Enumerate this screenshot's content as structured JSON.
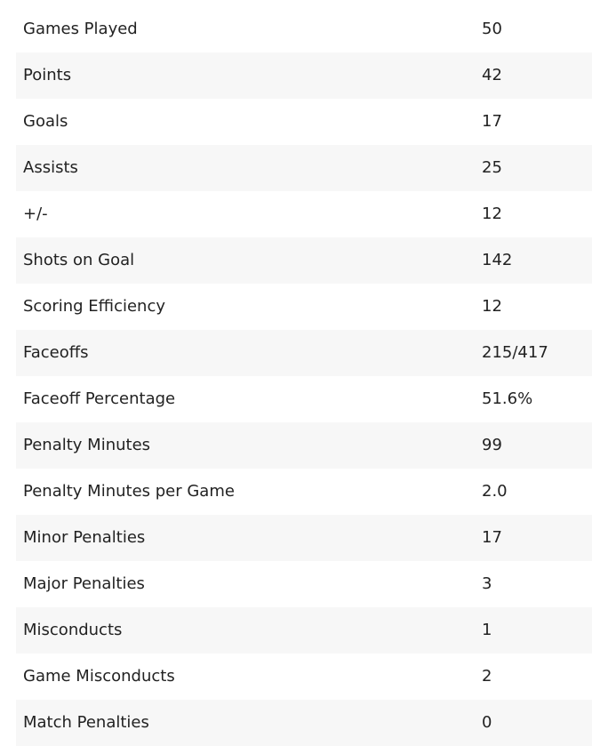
{
  "stats": [
    {
      "label": "Games Played",
      "value": "50"
    },
    {
      "label": "Points",
      "value": "42"
    },
    {
      "label": "Goals",
      "value": "17"
    },
    {
      "label": "Assists",
      "value": "25"
    },
    {
      "label": "+/-",
      "value": "12"
    },
    {
      "label": "Shots on Goal",
      "value": "142"
    },
    {
      "label": "Scoring Efficiency",
      "value": "12"
    },
    {
      "label": "Faceoffs",
      "value": "215/417"
    },
    {
      "label": "Faceoff Percentage",
      "value": "51.6%"
    },
    {
      "label": "Penalty Minutes",
      "value": "99"
    },
    {
      "label": "Penalty Minutes per Game",
      "value": "2.0"
    },
    {
      "label": "Minor Penalties",
      "value": "17"
    },
    {
      "label": "Major Penalties",
      "value": "3"
    },
    {
      "label": "Misconducts",
      "value": "1"
    },
    {
      "label": "Game Misconducts",
      "value": "2"
    },
    {
      "label": "Match Penalties",
      "value": "0"
    }
  ]
}
